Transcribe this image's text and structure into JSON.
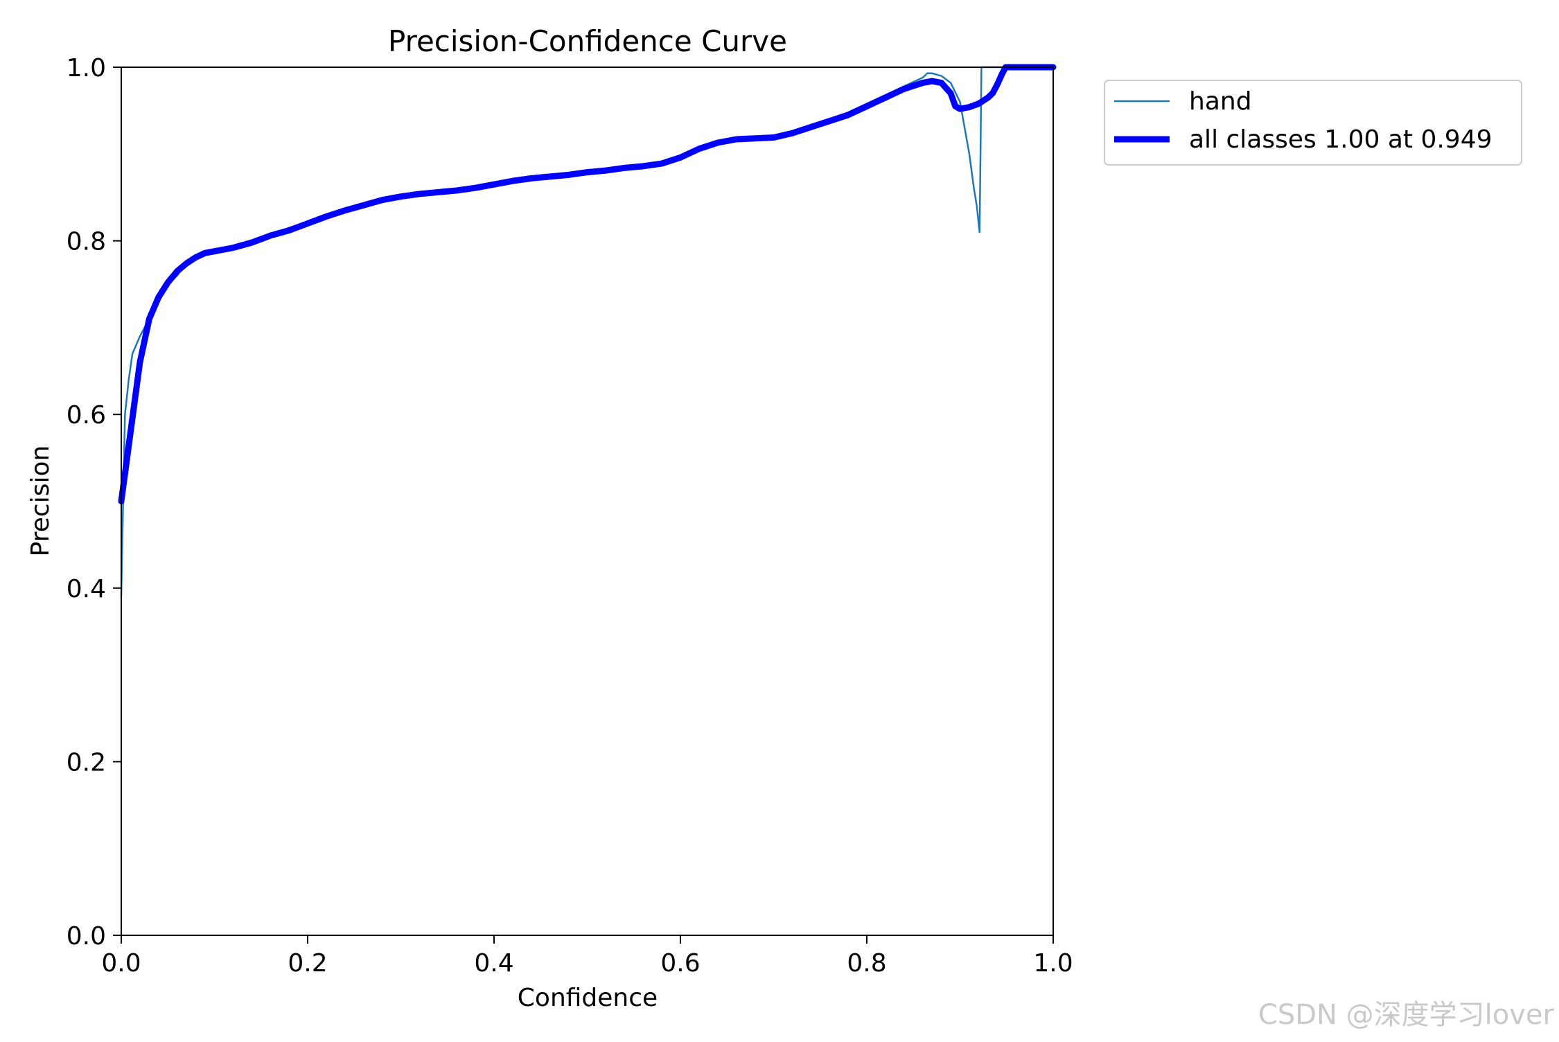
{
  "chart_data": {
    "type": "line",
    "title": "Precision-Confidence Curve",
    "xlabel": "Confidence",
    "ylabel": "Precision",
    "xlim": [
      0.0,
      1.0
    ],
    "ylim": [
      0.0,
      1.0
    ],
    "xticks": [
      "0.0",
      "0.2",
      "0.4",
      "0.6",
      "0.8",
      "1.0"
    ],
    "yticks": [
      "0.0",
      "0.2",
      "0.4",
      "0.6",
      "0.8",
      "1.0"
    ],
    "grid": false,
    "legend_position": "outside-top-right",
    "series": [
      {
        "name": "hand",
        "color": "#1f77b4",
        "linewidth": "thin",
        "x": [
          0.0,
          0.002,
          0.004,
          0.008,
          0.012,
          0.016,
          0.02,
          0.025,
          0.03,
          0.035,
          0.04,
          0.045,
          0.05,
          0.06,
          0.07,
          0.08,
          0.09,
          0.1,
          0.12,
          0.14,
          0.16,
          0.18,
          0.2,
          0.22,
          0.24,
          0.26,
          0.28,
          0.3,
          0.32,
          0.34,
          0.36,
          0.38,
          0.4,
          0.42,
          0.44,
          0.46,
          0.48,
          0.5,
          0.52,
          0.54,
          0.56,
          0.58,
          0.6,
          0.62,
          0.64,
          0.66,
          0.68,
          0.7,
          0.72,
          0.74,
          0.76,
          0.78,
          0.8,
          0.82,
          0.84,
          0.86,
          0.865,
          0.87,
          0.88,
          0.89,
          0.9,
          0.905,
          0.91,
          0.915,
          0.918,
          0.921,
          0.922,
          0.923,
          0.93,
          0.94,
          0.95,
          1.0
        ],
        "y": [
          0.39,
          0.5,
          0.6,
          0.64,
          0.67,
          0.68,
          0.69,
          0.7,
          0.71,
          0.72,
          0.73,
          0.74,
          0.75,
          0.76,
          0.775,
          0.783,
          0.787,
          0.79,
          0.793,
          0.798,
          0.806,
          0.815,
          0.822,
          0.83,
          0.837,
          0.843,
          0.849,
          0.852,
          0.854,
          0.856,
          0.858,
          0.862,
          0.866,
          0.87,
          0.873,
          0.875,
          0.877,
          0.879,
          0.882,
          0.885,
          0.887,
          0.889,
          0.897,
          0.907,
          0.914,
          0.918,
          0.919,
          0.92,
          0.925,
          0.933,
          0.94,
          0.948,
          0.958,
          0.968,
          0.978,
          0.988,
          0.993,
          0.993,
          0.99,
          0.982,
          0.96,
          0.93,
          0.9,
          0.86,
          0.84,
          0.81,
          0.9,
          1.0,
          1.0,
          1.0,
          1.0,
          1.0
        ]
      },
      {
        "name": "all classes 1.00 at 0.949",
        "color": "#0000ff",
        "linewidth": "thick",
        "x": [
          0.0,
          0.01,
          0.02,
          0.03,
          0.04,
          0.05,
          0.06,
          0.07,
          0.08,
          0.09,
          0.1,
          0.12,
          0.14,
          0.16,
          0.18,
          0.2,
          0.22,
          0.24,
          0.26,
          0.28,
          0.3,
          0.32,
          0.34,
          0.36,
          0.38,
          0.4,
          0.42,
          0.44,
          0.46,
          0.48,
          0.5,
          0.52,
          0.54,
          0.56,
          0.58,
          0.6,
          0.62,
          0.64,
          0.66,
          0.68,
          0.7,
          0.72,
          0.74,
          0.76,
          0.78,
          0.8,
          0.82,
          0.84,
          0.86,
          0.87,
          0.88,
          0.89,
          0.895,
          0.9,
          0.91,
          0.92,
          0.93,
          0.935,
          0.94,
          0.945,
          0.949,
          0.955,
          0.97,
          1.0
        ],
        "y": [
          0.5,
          0.58,
          0.66,
          0.71,
          0.735,
          0.752,
          0.765,
          0.774,
          0.781,
          0.786,
          0.788,
          0.792,
          0.798,
          0.806,
          0.812,
          0.82,
          0.828,
          0.835,
          0.841,
          0.847,
          0.851,
          0.854,
          0.856,
          0.858,
          0.861,
          0.865,
          0.869,
          0.872,
          0.874,
          0.876,
          0.879,
          0.881,
          0.884,
          0.886,
          0.889,
          0.896,
          0.906,
          0.913,
          0.917,
          0.918,
          0.919,
          0.924,
          0.931,
          0.938,
          0.945,
          0.955,
          0.965,
          0.975,
          0.982,
          0.984,
          0.982,
          0.97,
          0.955,
          0.952,
          0.954,
          0.958,
          0.965,
          0.97,
          0.98,
          0.992,
          1.0,
          1.0,
          1.0,
          1.0
        ]
      }
    ]
  },
  "watermark": {
    "text": "CSDN @深度学习lover"
  }
}
